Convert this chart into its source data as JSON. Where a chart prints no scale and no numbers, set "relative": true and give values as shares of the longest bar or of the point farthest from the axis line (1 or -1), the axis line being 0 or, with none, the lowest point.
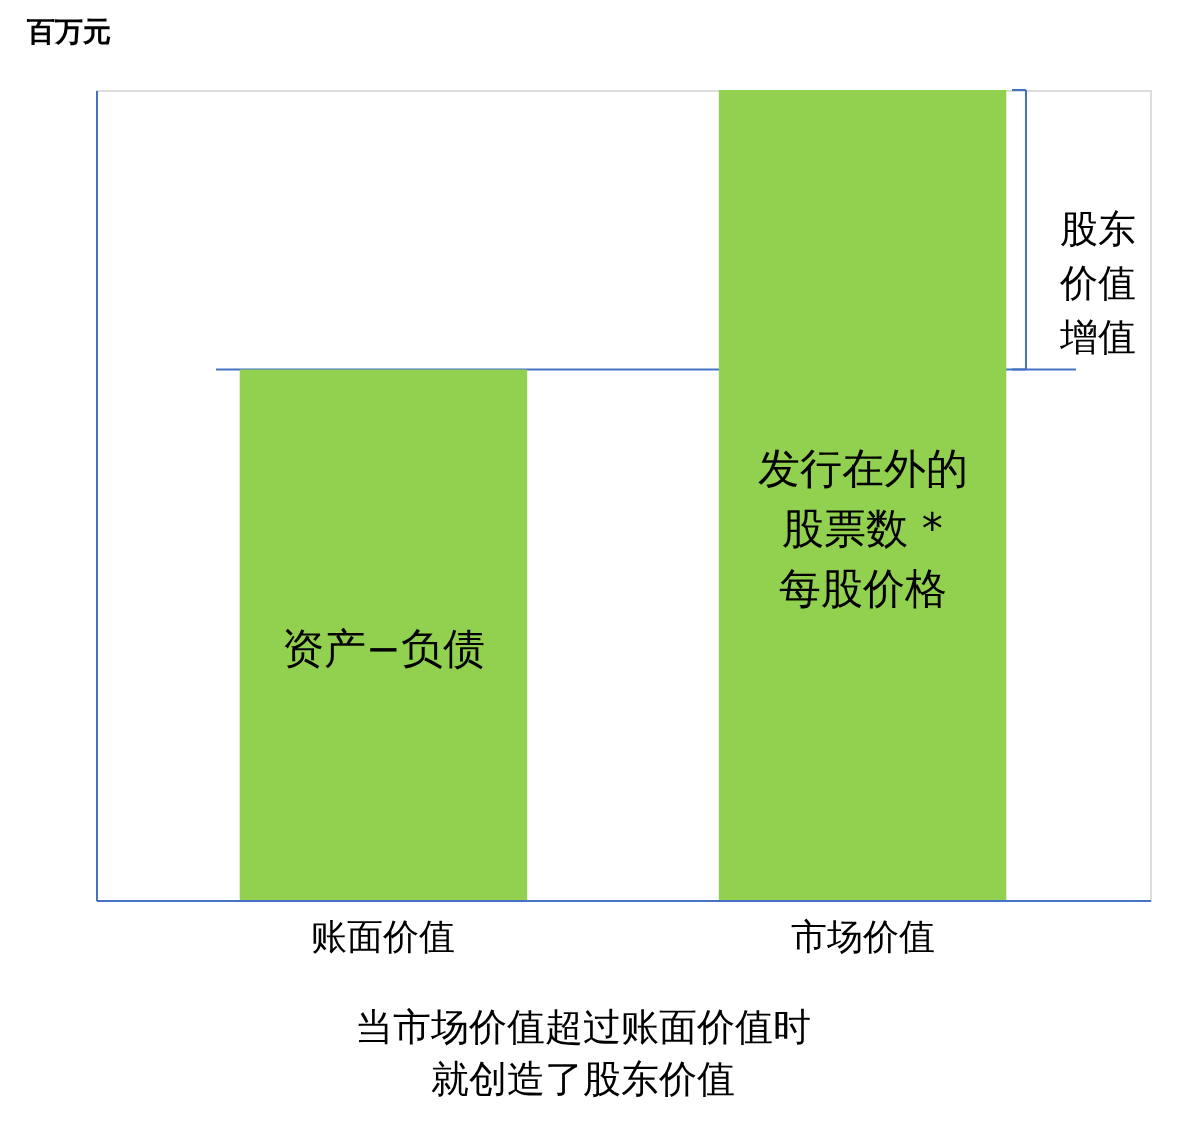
{
  "chart_data": {
    "type": "bar",
    "relative": true,
    "ylabel": "百万元",
    "categories": [
      "账面价值",
      "市场价值"
    ],
    "values": [
      0.655,
      1
    ],
    "color": "#92d050",
    "ref_lines": [
      {
        "axis": "y",
        "value": 0.655,
        "color": "#4472c4"
      }
    ],
    "annotations": [
      "资产−负债",
      "发行在外的股票数 *每股价格",
      "股东价值增值",
      "当市场价值超过账面价值时就创造了股东价值"
    ],
    "grid": false
  }
}
